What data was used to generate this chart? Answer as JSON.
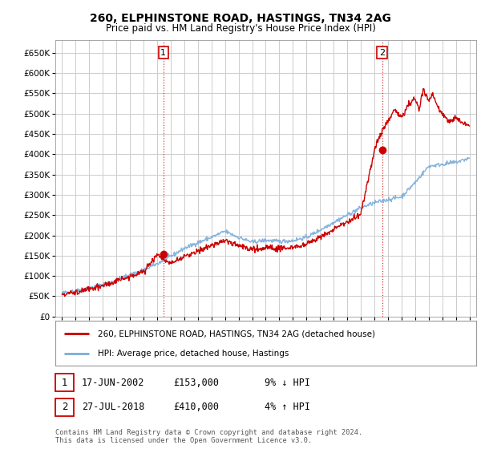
{
  "title": "260, ELPHINSTONE ROAD, HASTINGS, TN34 2AG",
  "subtitle": "Price paid vs. HM Land Registry's House Price Index (HPI)",
  "ytick_values": [
    0,
    50000,
    100000,
    150000,
    200000,
    250000,
    300000,
    350000,
    400000,
    450000,
    500000,
    550000,
    600000,
    650000
  ],
  "ylim": [
    0,
    680000
  ],
  "xlim_start": 1994.5,
  "xlim_end": 2025.5,
  "sale1_x": 2002.46,
  "sale1_y": 153000,
  "sale2_x": 2018.57,
  "sale2_y": 410000,
  "vline1_x": 2002.46,
  "vline2_x": 2018.57,
  "red_color": "#cc0000",
  "blue_color": "#7aaddb",
  "legend_line1": "260, ELPHINSTONE ROAD, HASTINGS, TN34 2AG (detached house)",
  "legend_line2": "HPI: Average price, detached house, Hastings",
  "table_rows": [
    {
      "num": "1",
      "date": "17-JUN-2002",
      "price": "£153,000",
      "hpi": "9% ↓ HPI"
    },
    {
      "num": "2",
      "date": "27-JUL-2018",
      "price": "£410,000",
      "hpi": "4% ↑ HPI"
    }
  ],
  "footer": "Contains HM Land Registry data © Crown copyright and database right 2024.\nThis data is licensed under the Open Government Licence v3.0.",
  "background_color": "#ffffff",
  "grid_color": "#cccccc",
  "hpi_years": [
    1995,
    1996,
    1997,
    1998,
    1999,
    2000,
    2001,
    2002,
    2003,
    2004,
    2005,
    2006,
    2007,
    2008,
    2009,
    2010,
    2011,
    2012,
    2013,
    2014,
    2015,
    2016,
    2017,
    2018,
    2019,
    2020,
    2021,
    2022,
    2023,
    2024,
    2025
  ],
  "hpi_values": [
    58000,
    63000,
    70000,
    79000,
    90000,
    103000,
    115000,
    130000,
    148000,
    168000,
    182000,
    195000,
    210000,
    195000,
    183000,
    188000,
    185000,
    187000,
    195000,
    213000,
    232000,
    250000,
    268000,
    280000,
    288000,
    295000,
    330000,
    370000,
    375000,
    380000,
    390000
  ],
  "red_years": [
    1995,
    1996,
    1997,
    1998,
    1999,
    2000,
    2001,
    2002,
    2002.5,
    2003,
    2004,
    2005,
    2006,
    2007,
    2008,
    2009,
    2010,
    2011,
    2012,
    2013,
    2014,
    2015,
    2016,
    2017,
    2018,
    2018.6,
    2019,
    2019.5,
    2020,
    2020.5,
    2021,
    2021.3,
    2021.6,
    2022,
    2022.3,
    2022.6,
    2023,
    2023.5,
    2024,
    2024.5,
    2025
  ],
  "red_values": [
    55000,
    60000,
    67000,
    76000,
    86000,
    99000,
    111000,
    153000,
    140000,
    130000,
    148000,
    160000,
    175000,
    188000,
    175000,
    165000,
    170000,
    168000,
    170000,
    178000,
    196000,
    215000,
    233000,
    252000,
    410000,
    460000,
    480000,
    510000,
    490000,
    520000,
    540000,
    510000,
    560000,
    530000,
    550000,
    520000,
    500000,
    480000,
    490000,
    475000,
    470000
  ]
}
